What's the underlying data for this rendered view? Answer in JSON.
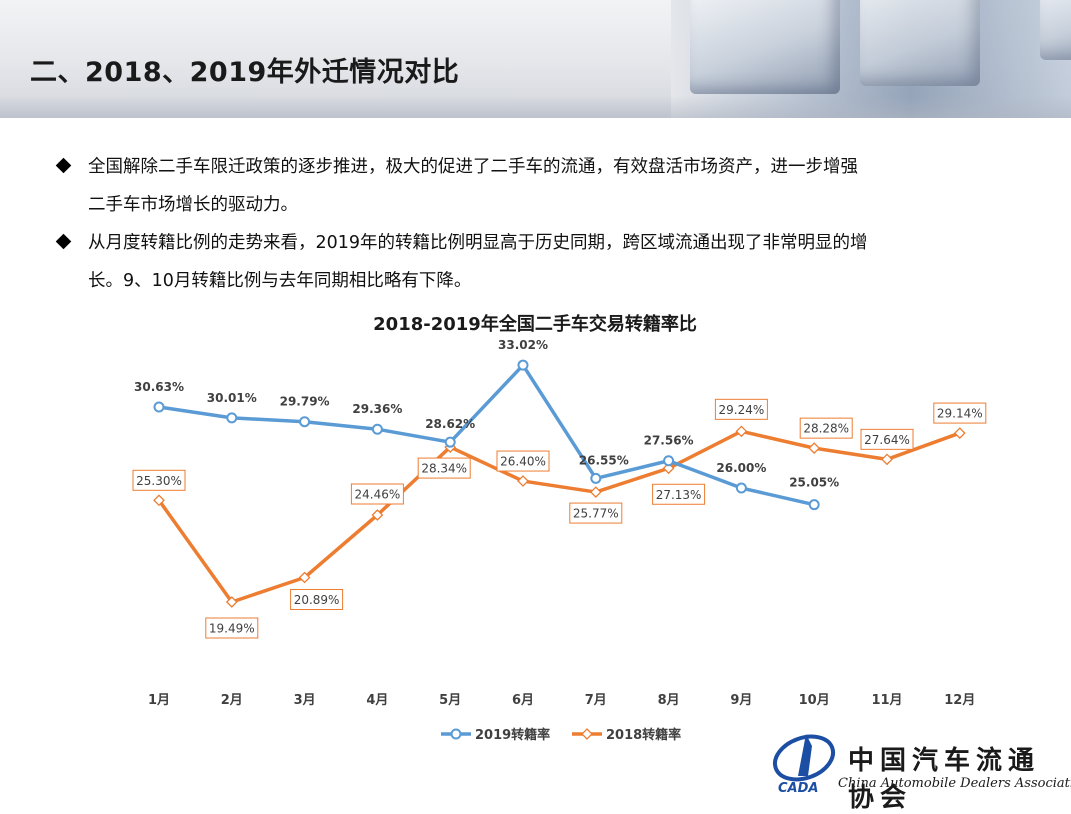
{
  "header": {
    "title": "二、2018、2019年外迁情况对比"
  },
  "bullets": [
    {
      "lines": [
        "全国解除二手车限迁政策的逐步推进，极大的促进了二手车的流通，有效盘活市场资产，进一步增强",
        "二手车市场增长的驱动力。"
      ]
    },
    {
      "lines": [
        "从月度转籍比例的走势来看，2019年的转籍比例明显高于历史同期，跨区域流通出现了非常明显的增",
        "长。9、10月转籍比例与去年同期相比略有下降。"
      ]
    }
  ],
  "chart_data": {
    "type": "line",
    "title": "2018-2019年全国二手车交易转籍率比",
    "categories": [
      "1月",
      "2月",
      "3月",
      "4月",
      "5月",
      "6月",
      "7月",
      "8月",
      "9月",
      "10月",
      "11月",
      "12月"
    ],
    "series": [
      {
        "name": "2019转籍率",
        "color": "#5b9bd5",
        "marker": "circle",
        "values": [
          30.63,
          30.01,
          29.79,
          29.36,
          28.62,
          33.02,
          26.55,
          27.56,
          26.0,
          25.05,
          null,
          null
        ],
        "labels": [
          "30.63%",
          "30.01%",
          "29.79%",
          "29.36%",
          "28.62%",
          "33.02%",
          "26.55%",
          "27.56%",
          "26.00%",
          "25.05%",
          "",
          ""
        ]
      },
      {
        "name": "2018转籍率",
        "color": "#ed7d31",
        "marker": "diamond",
        "values": [
          25.3,
          19.49,
          20.89,
          24.46,
          28.34,
          26.4,
          25.77,
          27.13,
          29.24,
          28.28,
          27.64,
          29.14
        ],
        "labels": [
          "25.30%",
          "19.49%",
          "20.89%",
          "24.46%",
          "28.34%",
          "26.40%",
          "25.77%",
          "27.13%",
          "29.24%",
          "28.28%",
          "27.64%",
          "29.14%"
        ]
      }
    ],
    "legend_position": "bottom",
    "grid": false,
    "ylim": [
      18,
      34
    ]
  },
  "logo": {
    "cn": "中国汽车流通协会",
    "en": "China Automobile Dealers Association",
    "abbr": "CADA"
  },
  "colors": {
    "series_2019": "#5b9bd5",
    "series_2018": "#ed7d31"
  }
}
